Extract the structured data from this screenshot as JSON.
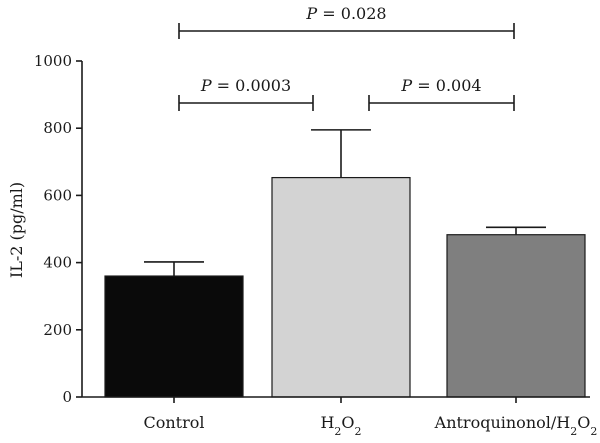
{
  "chart_data": {
    "type": "bar",
    "ylabel": "IL-2 (pg/ml)",
    "ylim": [
      0,
      1000
    ],
    "yticks": [
      0,
      200,
      400,
      600,
      800,
      1000
    ],
    "categories": [
      {
        "base": "Control"
      },
      {
        "base": "H",
        "sub": "2",
        "base2": "O",
        "sub2": "2"
      },
      {
        "base": "Antroquinonol/H",
        "sub": "2",
        "base2": "O",
        "sub2": "2"
      }
    ],
    "values": [
      360,
      653,
      483
    ],
    "errors": [
      42,
      142,
      22
    ],
    "bar_colors": [
      "#0a0a0a",
      "#d3d3d3",
      "#7f7f7f"
    ],
    "comparisons": [
      {
        "from": 0,
        "to": 2,
        "p_symbol": "P",
        "p_value": "= 0.028",
        "level": 0
      },
      {
        "from": 0,
        "to": 1,
        "p_symbol": "P",
        "p_value": "= 0.0003",
        "level": 1
      },
      {
        "from": 1,
        "to": 2,
        "p_symbol": "P",
        "p_value": "= 0.004",
        "level": 1
      }
    ]
  }
}
